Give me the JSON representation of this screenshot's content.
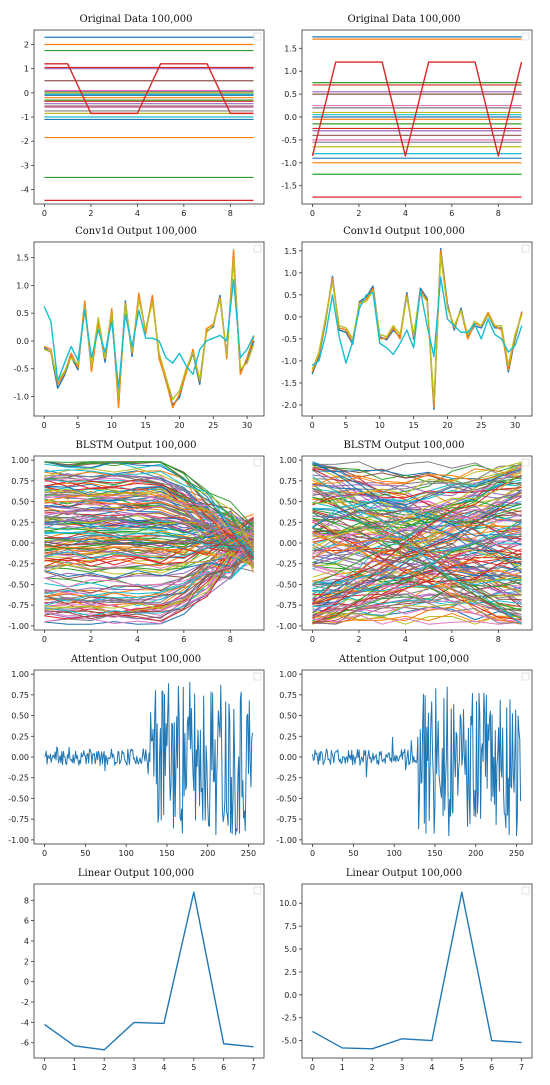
{
  "figure": {
    "background": "#ffffff",
    "axes_color": "#333333"
  },
  "chart_data": [
    {
      "type": "line",
      "title": "Original Data 100,000",
      "xlim": [
        -0.45,
        9.45
      ],
      "ylim": [
        -4.6,
        2.6
      ],
      "xticks": [
        0,
        2,
        4,
        6,
        8
      ],
      "yticks": [
        -4,
        -3,
        -2,
        -1,
        0,
        1,
        2
      ],
      "render": "flat_lines",
      "flat_levels": [
        2.3,
        2.0,
        1.75,
        1.05,
        1.0,
        0.5,
        0.1,
        0.05,
        0.0,
        -0.05,
        -0.1,
        -0.2,
        -0.3,
        -0.35,
        -0.45,
        -0.55,
        -0.6,
        -0.75,
        -0.85,
        -1.0,
        -1.1,
        -1.85,
        -3.5,
        -4.45
      ],
      "series": [
        {
          "x": [
            0,
            1,
            2,
            3,
            4,
            5,
            6,
            7,
            8,
            9
          ],
          "y": [
            1.2,
            1.2,
            -0.85,
            -0.85,
            -0.85,
            1.2,
            1.2,
            1.2,
            -0.85,
            -0.85
          ],
          "color": "#d62728"
        }
      ]
    },
    {
      "type": "line",
      "title": "Original Data 100,000",
      "xlim": [
        -0.45,
        9.45
      ],
      "ylim": [
        -1.9,
        1.9
      ],
      "xticks": [
        0,
        2,
        4,
        6,
        8
      ],
      "yticks": [
        -1.5,
        -1.0,
        -0.5,
        0.0,
        0.5,
        1.0,
        1.5
      ],
      "render": "flat_lines",
      "flat_levels": [
        1.75,
        1.7,
        0.75,
        0.7,
        0.55,
        0.5,
        0.25,
        0.2,
        0.1,
        0.05,
        0.0,
        -0.05,
        -0.15,
        -0.25,
        -0.3,
        -0.4,
        -0.5,
        -0.55,
        -0.65,
        -0.8,
        -0.9,
        -1.0,
        -1.25,
        -1.75
      ],
      "series": [
        {
          "x": [
            0,
            1,
            2,
            3,
            4,
            5,
            6,
            7,
            8,
            9
          ],
          "y": [
            -0.85,
            1.2,
            1.2,
            1.2,
            -0.85,
            1.2,
            1.2,
            1.2,
            -0.85,
            1.2
          ],
          "color": "#d62728"
        }
      ]
    },
    {
      "type": "line",
      "title": "Conv1d Output 100,000",
      "xlim": [
        -1.5,
        32.5
      ],
      "ylim": [
        -1.35,
        1.78
      ],
      "xticks": [
        0,
        5,
        10,
        15,
        20,
        25,
        30
      ],
      "yticks": [
        -1.0,
        -0.5,
        0.0,
        0.5,
        1.0,
        1.5
      ],
      "series": [
        {
          "x": [
            0,
            1,
            2,
            3,
            4,
            5,
            6,
            7,
            8,
            9,
            10,
            11,
            12,
            13,
            14,
            15,
            16,
            17,
            18,
            19,
            20,
            21,
            22,
            23,
            24,
            25,
            26,
            27,
            28,
            29,
            30,
            31
          ],
          "y": [
            -0.12,
            -0.2,
            -0.85,
            -0.62,
            -0.28,
            -0.52,
            0.68,
            -0.52,
            0.38,
            -0.38,
            0.52,
            -1.15,
            0.72,
            -0.28,
            0.82,
            0.18,
            0.78,
            -0.28,
            -0.72,
            -1.15,
            -1.02,
            -0.55,
            -0.22,
            -0.78,
            0.18,
            0.25,
            0.82,
            -0.28,
            1.58,
            -0.55,
            -0.35,
            0.0
          ],
          "color": "#1f77b4"
        },
        {
          "x": [
            0,
            1,
            2,
            3,
            4,
            5,
            6,
            7,
            8,
            9,
            10,
            11,
            12,
            13,
            14,
            15,
            16,
            17,
            18,
            19,
            20,
            21,
            22,
            23,
            24,
            25,
            26,
            27,
            28,
            29,
            30,
            31
          ],
          "y": [
            -0.1,
            -0.15,
            -0.78,
            -0.58,
            -0.22,
            -0.48,
            0.72,
            -0.55,
            0.32,
            -0.32,
            0.58,
            -1.2,
            0.68,
            -0.22,
            0.86,
            0.12,
            0.82,
            -0.32,
            -0.7,
            -1.2,
            -0.96,
            -0.58,
            -0.15,
            -0.72,
            0.22,
            0.3,
            0.78,
            -0.32,
            1.64,
            -0.6,
            -0.3,
            0.08
          ],
          "color": "#ff7f0e"
        },
        {
          "x": [
            0,
            1,
            2,
            3,
            4,
            5,
            6,
            7,
            8,
            9,
            10,
            11,
            12,
            13,
            14,
            15,
            16,
            17,
            18,
            19,
            20,
            21,
            22,
            23,
            24,
            25,
            26,
            27,
            28,
            29,
            30,
            31
          ],
          "y": [
            -0.15,
            -0.2,
            -0.72,
            -0.55,
            -0.3,
            -0.42,
            0.6,
            -0.45,
            0.42,
            -0.3,
            0.48,
            -1.02,
            0.66,
            -0.2,
            0.75,
            0.2,
            0.7,
            -0.22,
            -0.65,
            -1.05,
            -0.9,
            -0.5,
            -0.2,
            -0.7,
            0.15,
            0.28,
            0.75,
            -0.25,
            1.45,
            -0.5,
            -0.4,
            -0.05
          ],
          "color": "#bcbd22"
        },
        {
          "x": [
            0,
            1,
            2,
            3,
            4,
            5,
            6,
            7,
            8,
            9,
            10,
            11,
            12,
            13,
            14,
            15,
            16,
            17,
            18,
            19,
            20,
            21,
            22,
            23,
            24,
            25,
            26,
            27,
            28,
            29,
            30,
            31
          ],
          "y": [
            0.62,
            0.35,
            -0.72,
            -0.4,
            -0.1,
            -0.35,
            0.55,
            -0.3,
            0.2,
            -0.2,
            0.35,
            -0.85,
            0.48,
            -0.1,
            0.55,
            0.05,
            0.05,
            0.0,
            -0.3,
            -0.4,
            -0.22,
            -0.45,
            -0.6,
            -0.15,
            0.0,
            0.05,
            0.1,
            0.0,
            1.1,
            -0.3,
            -0.15,
            0.1
          ],
          "color": "#17becf"
        }
      ]
    },
    {
      "type": "line",
      "title": "Conv1d Output 100,000",
      "xlim": [
        -1.5,
        32.5
      ],
      "ylim": [
        -2.25,
        1.7
      ],
      "xticks": [
        0,
        5,
        10,
        15,
        20,
        25,
        30
      ],
      "yticks": [
        -2.0,
        -1.5,
        -1.0,
        -0.5,
        0.0,
        0.5,
        1.0,
        1.5
      ],
      "series": [
        {
          "x": [
            0,
            1,
            2,
            3,
            4,
            5,
            6,
            7,
            8,
            9,
            10,
            11,
            12,
            13,
            14,
            15,
            16,
            17,
            18,
            19,
            20,
            21,
            22,
            23,
            24,
            25,
            26,
            27,
            28,
            29,
            30,
            31
          ],
          "y": [
            -1.3,
            -0.9,
            -0.1,
            0.92,
            -0.3,
            -0.35,
            -0.62,
            0.35,
            0.45,
            0.7,
            -0.45,
            -0.52,
            -0.3,
            -0.45,
            0.55,
            -0.5,
            0.65,
            0.42,
            -2.1,
            1.55,
            0.3,
            -0.3,
            0.2,
            -0.45,
            -0.2,
            -0.25,
            0.05,
            -0.25,
            -0.25,
            -1.25,
            -0.5,
            0.12
          ],
          "color": "#1f77b4"
        },
        {
          "x": [
            0,
            1,
            2,
            3,
            4,
            5,
            6,
            7,
            8,
            9,
            10,
            11,
            12,
            13,
            14,
            15,
            16,
            17,
            18,
            19,
            20,
            21,
            22,
            23,
            24,
            25,
            26,
            27,
            28,
            29,
            30,
            31
          ],
          "y": [
            -1.25,
            -0.85,
            -0.05,
            0.88,
            -0.25,
            -0.3,
            -0.58,
            0.32,
            0.4,
            0.65,
            -0.5,
            -0.48,
            -0.25,
            -0.5,
            0.5,
            -0.45,
            0.6,
            0.38,
            -2.05,
            1.5,
            0.25,
            -0.25,
            0.15,
            -0.5,
            -0.15,
            -0.2,
            0.1,
            -0.2,
            -0.3,
            -1.2,
            -0.45,
            0.1
          ],
          "color": "#ff7f0e"
        },
        {
          "x": [
            0,
            1,
            2,
            3,
            4,
            5,
            6,
            7,
            8,
            9,
            10,
            11,
            12,
            13,
            14,
            15,
            16,
            17,
            18,
            19,
            20,
            21,
            22,
            23,
            24,
            25,
            26,
            27,
            28,
            29,
            30,
            31
          ],
          "y": [
            -1.2,
            -0.8,
            0.0,
            0.8,
            -0.2,
            -0.25,
            -0.5,
            0.3,
            0.35,
            0.6,
            -0.4,
            -0.45,
            -0.2,
            -0.4,
            0.45,
            -0.4,
            0.55,
            0.35,
            -1.9,
            1.4,
            0.2,
            -0.2,
            0.15,
            -0.4,
            -0.1,
            -0.2,
            0.05,
            -0.2,
            -0.2,
            -1.1,
            -0.4,
            0.05
          ],
          "color": "#bcbd22"
        },
        {
          "x": [
            0,
            1,
            2,
            3,
            4,
            5,
            6,
            7,
            8,
            9,
            10,
            11,
            12,
            13,
            14,
            15,
            16,
            17,
            18,
            19,
            20,
            21,
            22,
            23,
            24,
            25,
            26,
            27,
            28,
            29,
            30,
            31
          ],
          "y": [
            -1.1,
            -1.0,
            -0.4,
            0.5,
            -0.45,
            -1.05,
            -0.55,
            0.2,
            0.5,
            0.55,
            -0.6,
            -0.7,
            -0.85,
            -0.6,
            -0.3,
            -0.7,
            0.6,
            -0.2,
            -0.9,
            0.9,
            -0.05,
            -0.2,
            -0.35,
            -0.35,
            -0.15,
            -0.5,
            -0.05,
            -0.4,
            -0.5,
            -0.8,
            -0.65,
            -0.2
          ],
          "color": "#17becf"
        }
      ]
    },
    {
      "type": "line",
      "title": "BLSTM Output 100,000",
      "xlim": [
        -0.45,
        9.45
      ],
      "ylim": [
        -1.05,
        1.05
      ],
      "xticks": [
        0,
        2,
        4,
        6,
        8
      ],
      "yticks": [
        -1.0,
        -0.75,
        -0.5,
        -0.25,
        0.0,
        0.25,
        0.5,
        0.75,
        1.0
      ],
      "render": "dense_random",
      "dense_count": 160,
      "dense_seed": 7,
      "dense_mode": "converge"
    },
    {
      "type": "line",
      "title": "BLSTM Output 100,000",
      "xlim": [
        -0.45,
        9.45
      ],
      "ylim": [
        -1.05,
        1.05
      ],
      "xticks": [
        0,
        2,
        4,
        6,
        8
      ],
      "yticks": [
        -1.0,
        -0.75,
        -0.5,
        -0.25,
        0.0,
        0.25,
        0.5,
        0.75,
        1.0
      ],
      "render": "dense_random",
      "dense_count": 160,
      "dense_seed": 23,
      "dense_mode": "cross"
    },
    {
      "type": "line",
      "title": "Attention Output 100,000",
      "xlim": [
        -13,
        269
      ],
      "ylim": [
        -1.05,
        1.05
      ],
      "xticks": [
        0,
        50,
        100,
        150,
        200,
        250
      ],
      "yticks": [
        -1.0,
        -0.75,
        -0.5,
        -0.25,
        0.0,
        0.25,
        0.5,
        0.75,
        1.0
      ],
      "render": "noise_burst",
      "noise_seed": 11,
      "noise_n": 256,
      "burst_start": 130,
      "series": [
        {
          "color": "#1f77b4"
        }
      ]
    },
    {
      "type": "line",
      "title": "Attention Output 100,000",
      "xlim": [
        -13,
        269
      ],
      "ylim": [
        -1.05,
        1.05
      ],
      "xticks": [
        0,
        50,
        100,
        150,
        200,
        250
      ],
      "yticks": [
        -1.0,
        -0.75,
        -0.5,
        -0.25,
        0.0,
        0.25,
        0.5,
        0.75,
        1.0
      ],
      "render": "noise_burst",
      "noise_seed": 31,
      "noise_n": 256,
      "burst_start": 130,
      "series": [
        {
          "color": "#1f77b4"
        }
      ]
    },
    {
      "type": "line",
      "title": "Linear Output 100,000",
      "xlim": [
        -0.35,
        7.35
      ],
      "ylim": [
        -7.5,
        9.6
      ],
      "xticks": [
        0,
        1,
        2,
        3,
        4,
        5,
        6,
        7
      ],
      "yticks": [
        -6,
        -4,
        -2,
        0,
        2,
        4,
        6,
        8
      ],
      "series": [
        {
          "x": [
            0,
            1,
            2,
            3,
            4,
            5,
            6,
            7
          ],
          "y": [
            -4.2,
            -6.3,
            -6.7,
            -4.0,
            -4.1,
            8.8,
            -6.1,
            -6.4
          ],
          "color": "#1f77b4"
        }
      ]
    },
    {
      "type": "line",
      "title": "Linear Output 100,000",
      "xlim": [
        -0.35,
        7.35
      ],
      "ylim": [
        -6.9,
        12.1
      ],
      "xticks": [
        0,
        1,
        2,
        3,
        4,
        5,
        6,
        7
      ],
      "yticks": [
        -5.0,
        -2.5,
        0.0,
        2.5,
        5.0,
        7.5,
        10.0
      ],
      "series": [
        {
          "x": [
            0,
            1,
            2,
            3,
            4,
            5,
            6,
            7
          ],
          "y": [
            -4.0,
            -5.8,
            -5.9,
            -4.8,
            -5.0,
            11.2,
            -5.0,
            -5.2
          ],
          "color": "#1f77b4"
        }
      ]
    }
  ]
}
